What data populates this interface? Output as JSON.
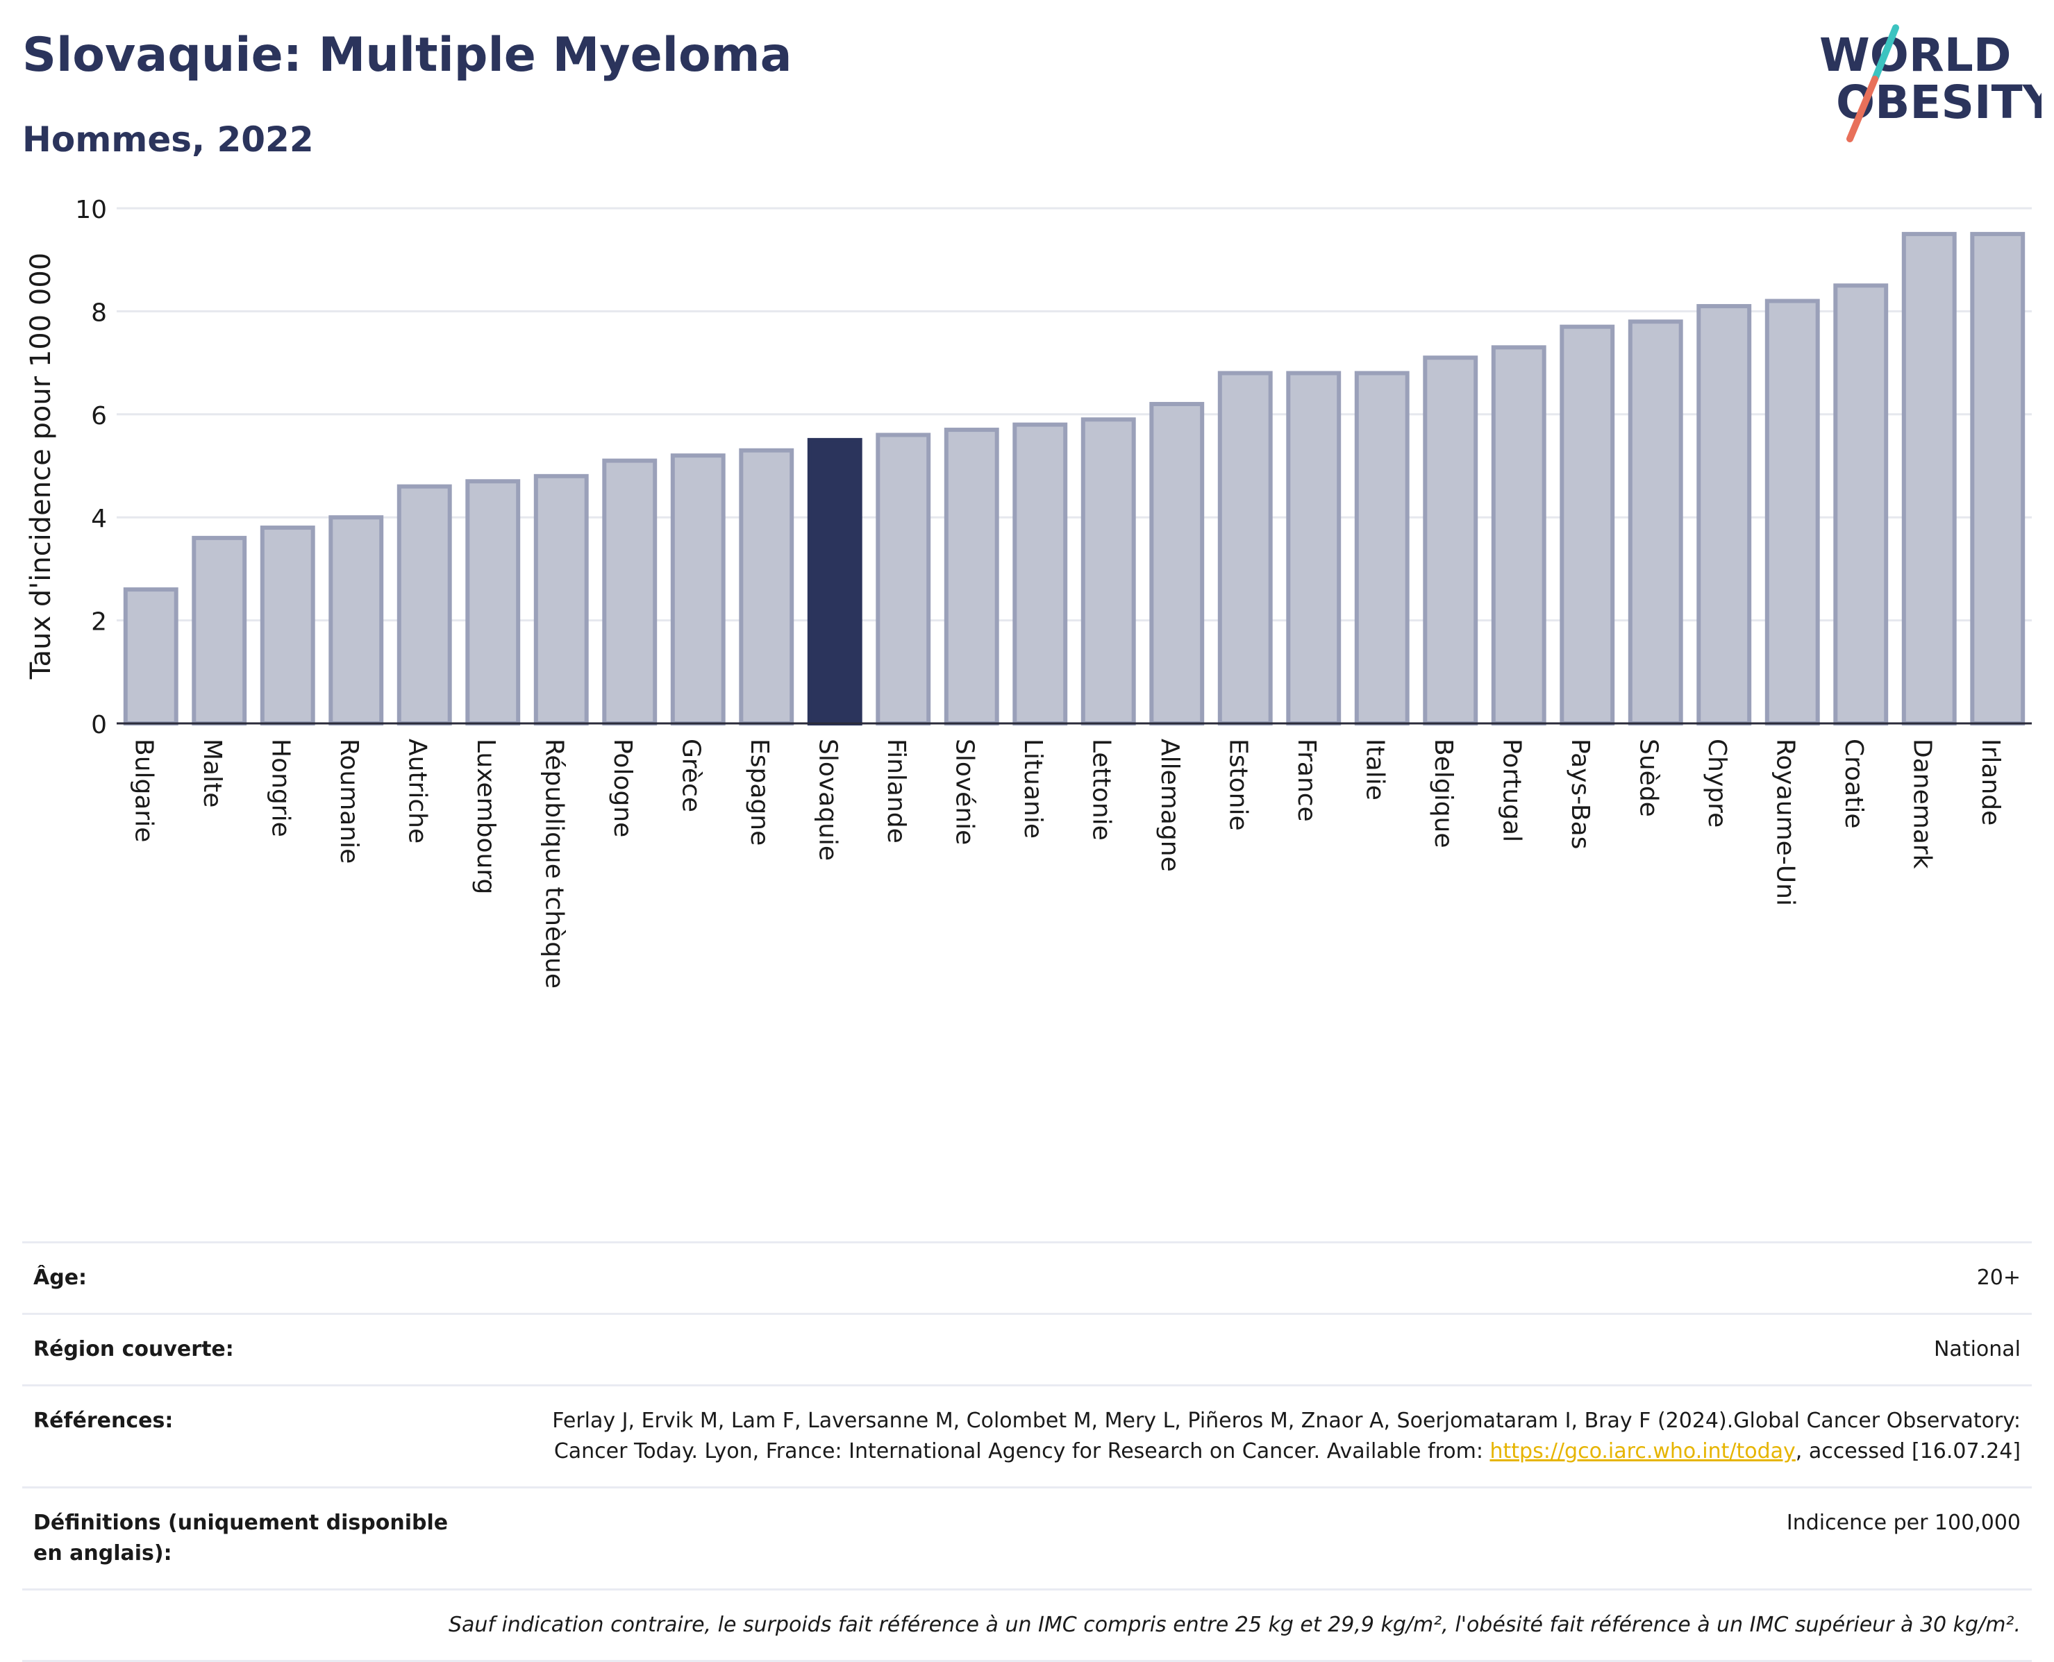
{
  "header": {
    "title": "Slovaquie: Multiple Myeloma",
    "subtitle": "Hommes, 2022",
    "logo_line1": "WORLD",
    "logo_line2": "OBESITY"
  },
  "colors": {
    "title": "#2b345c",
    "highlight_bar": "#2b345c",
    "other_bar_fill": "#bfc3d1",
    "other_bar_stroke": "#9aa0b9",
    "link": "#e6b400",
    "logo_slash_top": "#3cc3c0",
    "logo_slash_bottom": "#e8705a"
  },
  "chart_data": {
    "type": "bar",
    "ylabel": "Taux d'incidence pour 100 000",
    "xlabel": "",
    "ylim": [
      0,
      10
    ],
    "yticks": [
      0,
      2,
      4,
      6,
      8,
      10
    ],
    "grid": true,
    "highlight": "Slovaquie",
    "categories": [
      "Bulgarie",
      "Malte",
      "Hongrie",
      "Roumanie",
      "Autriche",
      "Luxembourg",
      "République tchèque",
      "Pologne",
      "Grèce",
      "Espagne",
      "Slovaquie",
      "Finlande",
      "Slovénie",
      "Lituanie",
      "Lettonie",
      "Allemagne",
      "Estonie",
      "France",
      "Italie",
      "Belgique",
      "Portugal",
      "Pays-Bas",
      "Suède",
      "Chypre",
      "Royaume-Uni",
      "Croatie",
      "Danemark",
      "Irlande"
    ],
    "values": [
      2.6,
      3.6,
      3.8,
      4.0,
      4.6,
      4.7,
      4.8,
      5.1,
      5.2,
      5.3,
      5.5,
      5.6,
      5.7,
      5.8,
      5.9,
      6.2,
      6.8,
      6.8,
      6.8,
      7.1,
      7.3,
      7.7,
      7.8,
      8.1,
      8.2,
      8.5,
      9.5,
      9.5
    ]
  },
  "meta": {
    "rows": [
      {
        "label": "Âge:",
        "value": "20+"
      },
      {
        "label": "Région couverte:",
        "value": "National"
      },
      {
        "label": "Références:",
        "value_pre": "Ferlay J, Ervik M, Lam F, Laversanne M, Colombet M, Mery L, Piñeros M, Znaor A, Soerjomataram I, Bray F (2024).Global Cancer Observatory: Cancer Today. Lyon, France: International Agency for Research on Cancer. Available from: ",
        "link": "https://gco.iarc.who.int/today",
        "value_post": ", accessed [16.07.24]"
      },
      {
        "label": "Définitions (uniquement disponible en anglais):",
        "value": "Indicence per 100,000"
      }
    ],
    "note": "Sauf indication contraire, le surpoids fait référence à un IMC compris entre 25 kg et 29,9 kg/m², l'obésité fait référence à un IMC supérieur à 30 kg/m²."
  }
}
